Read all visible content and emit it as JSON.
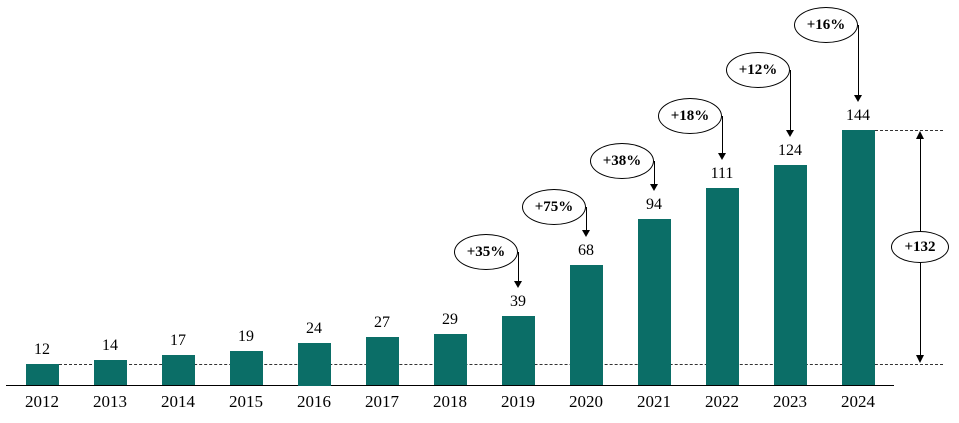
{
  "chart_data": {
    "type": "bar",
    "title": "",
    "xlabel": "",
    "ylabel": "",
    "categories": [
      "2012",
      "2013",
      "2014",
      "2015",
      "2016",
      "2017",
      "2018",
      "2019",
      "2020",
      "2021",
      "2022",
      "2023",
      "2024"
    ],
    "values": [
      12,
      14,
      17,
      19,
      24,
      27,
      29,
      39,
      68,
      94,
      111,
      124,
      144
    ],
    "ylim": [
      0,
      150
    ],
    "grid": false,
    "legend": false,
    "bar_color": "#0b6e67",
    "annotation_outline_color": "#000000",
    "growth_annotations": [
      {
        "label": "+35%",
        "from": "2018",
        "to": "2019"
      },
      {
        "label": "+75%",
        "from": "2019",
        "to": "2020"
      },
      {
        "label": "+38%",
        "from": "2020",
        "to": "2021"
      },
      {
        "label": "+18%",
        "from": "2021",
        "to": "2022"
      },
      {
        "label": "+12%",
        "from": "2022",
        "to": "2023"
      },
      {
        "label": "+16%",
        "from": "2023",
        "to": "2024"
      }
    ],
    "total_annotation": {
      "label": "+132",
      "from": "2012",
      "to": "2024"
    }
  }
}
